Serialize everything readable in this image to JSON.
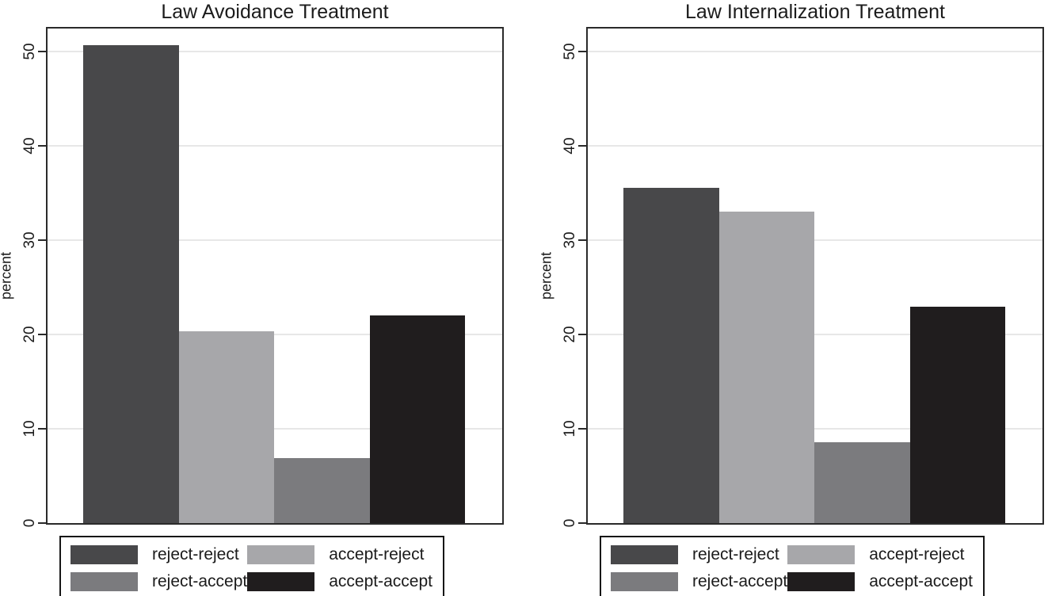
{
  "chart_data": [
    {
      "type": "bar",
      "title": "Law Avoidance Treatment",
      "xlabel": "",
      "ylabel": "percent",
      "categories": [
        "reject-reject",
        "accept-reject",
        "reject-accept",
        "accept-accept"
      ],
      "values": [
        50.6,
        20.3,
        6.9,
        22.0
      ],
      "colors": [
        "#48484a",
        "#a7a7aa",
        "#7b7b7e",
        "#201d1e"
      ],
      "ylim": [
        0,
        52.4
      ],
      "yticks": [
        0,
        10,
        20,
        30,
        40,
        50
      ],
      "grid": true,
      "legend_position": "bottom",
      "legend_labels": [
        "reject-reject",
        "accept-reject",
        "reject-accept",
        "accept-accept"
      ]
    },
    {
      "type": "bar",
      "title": "Law Internalization Treatment",
      "xlabel": "",
      "ylabel": "percent",
      "categories": [
        "reject-reject",
        "accept-reject",
        "reject-accept",
        "accept-accept"
      ],
      "values": [
        35.5,
        33.0,
        8.6,
        22.9
      ],
      "colors": [
        "#48484a",
        "#a7a7aa",
        "#7b7b7e",
        "#201d1e"
      ],
      "ylim": [
        0,
        52.4
      ],
      "yticks": [
        0,
        10,
        20,
        30,
        40,
        50
      ],
      "grid": true,
      "legend_position": "bottom",
      "legend_labels": [
        "reject-reject",
        "accept-reject",
        "reject-accept",
        "accept-accept"
      ]
    }
  ]
}
